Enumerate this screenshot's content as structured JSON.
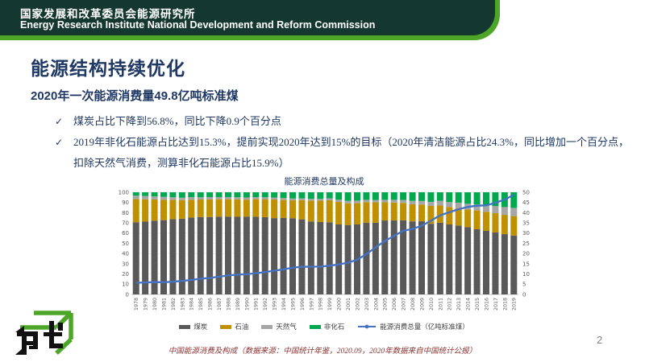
{
  "header": {
    "title_zh": "国家发展和改革委员会能源研究所",
    "title_en": "Energy Research Institute National Development and Reform Commission"
  },
  "slide": {
    "title": "能源结构持续优化",
    "subtitle": "2020年一次能源消费量49.8亿吨标准煤",
    "bullets": [
      {
        "marker": "✓",
        "text": "煤炭占比下降到56.8%，同比下降0.9个百分点"
      },
      {
        "marker": "✓",
        "text": "2019年非化石能源占比达到15.3%，提前实现2020年达到15%的目标（2020年清洁能源占比24.3%，同比增加一个百分点，扣除天然气消费，测算非化石能源占比15.9%）"
      }
    ],
    "footer_caption": "中国能源消费及构成（数据来源：中国统计年鉴，2020.09，2020年数据来自中国统计公报）",
    "page_number": "2"
  },
  "colors": {
    "header_dark_green": "#14382f",
    "accent_green": "#4ea629",
    "navy": "#1f3864",
    "footer_red": "#8c3230",
    "axis_text": "#595959",
    "page_gray": "#808080"
  },
  "chart_data": {
    "type": "bar",
    "stacked": true,
    "stacked_unit": "percent",
    "title": "能源消费总量及构成",
    "left_axis": {
      "min": 0,
      "max": 100,
      "step": 10
    },
    "right_axis": {
      "min": 0,
      "max": 50,
      "step": 5
    },
    "grid": "horizontal-faint",
    "legend_position": "bottom",
    "categories": [
      "1978",
      "1979",
      "1980",
      "1981",
      "1982",
      "1983",
      "1984",
      "1985",
      "1986",
      "1987",
      "1988",
      "1989",
      "1990",
      "1991",
      "1992",
      "1993",
      "1994",
      "1995",
      "1996",
      "1997",
      "1998",
      "1999",
      "2000",
      "2001",
      "2002",
      "2003",
      "2004",
      "2005",
      "2006",
      "2007",
      "2008",
      "2009",
      "2010",
      "2011",
      "2012",
      "2013",
      "2014",
      "2015",
      "2016",
      "2017",
      "2018",
      "2019"
    ],
    "series": [
      {
        "name": "煤炭",
        "color": "#595959",
        "values": [
          70.7,
          71.3,
          72.2,
          72.7,
          73.7,
          74.2,
          75.3,
          75.8,
          75.8,
          76.2,
          76.2,
          76.0,
          76.2,
          76.1,
          75.7,
          74.7,
          75.0,
          74.6,
          73.5,
          71.4,
          70.9,
          70.6,
          68.5,
          68.0,
          68.5,
          70.2,
          70.2,
          72.4,
          72.4,
          72.5,
          71.5,
          71.6,
          69.2,
          70.2,
          68.5,
          67.4,
          65.8,
          63.8,
          62.2,
          60.6,
          59.0,
          57.7
        ]
      },
      {
        "name": "石油",
        "color": "#bf9000",
        "values": [
          22.7,
          21.8,
          20.7,
          20.0,
          18.9,
          18.1,
          17.4,
          17.1,
          17.2,
          17.0,
          17.0,
          17.1,
          16.6,
          17.1,
          17.5,
          18.2,
          17.4,
          17.5,
          18.7,
          20.4,
          20.8,
          21.5,
          22.0,
          21.2,
          21.0,
          20.1,
          19.9,
          17.8,
          17.5,
          17.0,
          16.7,
          16.4,
          17.4,
          16.8,
          17.0,
          17.1,
          17.3,
          18.4,
          18.7,
          18.9,
          18.9,
          19.0
        ]
      },
      {
        "name": "天然气",
        "color": "#a6a6a6",
        "values": [
          3.2,
          3.3,
          3.1,
          2.8,
          2.5,
          2.4,
          2.4,
          2.2,
          2.3,
          2.1,
          2.1,
          2.0,
          2.1,
          2.0,
          1.9,
          1.9,
          1.9,
          1.8,
          1.8,
          1.8,
          1.8,
          2.0,
          2.2,
          2.4,
          2.3,
          2.3,
          2.3,
          2.4,
          2.7,
          3.0,
          3.4,
          3.5,
          4.0,
          4.6,
          4.8,
          5.3,
          5.6,
          5.8,
          6.1,
          6.9,
          7.6,
          8.0
        ]
      },
      {
        "name": "非化石",
        "color": "#00a84e",
        "values": [
          3.4,
          3.6,
          4.0,
          4.5,
          4.9,
          5.3,
          4.9,
          4.9,
          4.7,
          4.7,
          4.7,
          4.9,
          5.1,
          4.8,
          4.9,
          5.2,
          5.7,
          6.1,
          6.0,
          6.4,
          6.5,
          5.9,
          7.3,
          8.4,
          8.2,
          7.4,
          7.6,
          7.4,
          7.4,
          7.5,
          8.4,
          8.5,
          9.4,
          8.4,
          9.7,
          10.2,
          11.3,
          12.0,
          13.0,
          13.6,
          14.5,
          15.3
        ]
      }
    ],
    "line_series": {
      "name": "能源消费总量（亿吨标准煤）",
      "color": "#4472c4",
      "axis": "right",
      "values": [
        5.71,
        5.86,
        6.03,
        5.94,
        6.21,
        6.6,
        7.09,
        7.67,
        8.09,
        8.66,
        9.3,
        9.69,
        9.87,
        10.38,
        10.92,
        11.6,
        12.27,
        13.12,
        13.52,
        13.59,
        13.62,
        14.06,
        14.7,
        15.55,
        16.96,
        19.71,
        23.03,
        26.14,
        28.65,
        31.14,
        32.06,
        33.61,
        36.06,
        38.7,
        40.21,
        41.69,
        42.83,
        43.41,
        43.59,
        44.85,
        46.4,
        48.75
      ]
    }
  }
}
